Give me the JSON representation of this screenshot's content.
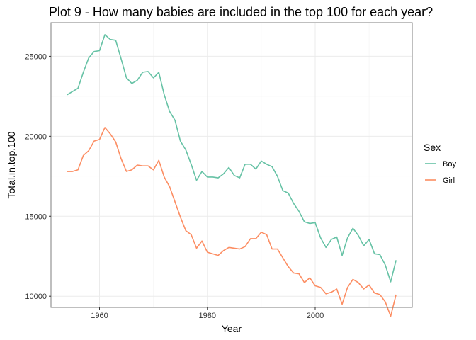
{
  "chart_data": {
    "type": "line",
    "title": "Plot 9 - How many babies are included in the top 100 for each year?",
    "xlabel": "Year",
    "ylabel": "Total.in.top.100",
    "xlim": [
      1951,
      2018
    ],
    "ylim": [
      9300,
      27100
    ],
    "x_ticks": [
      1960,
      1980,
      2000
    ],
    "y_ticks": [
      10000,
      15000,
      20000,
      25000
    ],
    "grid": true,
    "legend": {
      "title": "Sex",
      "position": "right"
    },
    "x": [
      1954,
      1955,
      1956,
      1957,
      1958,
      1959,
      1960,
      1961,
      1962,
      1963,
      1964,
      1965,
      1966,
      1967,
      1968,
      1969,
      1970,
      1971,
      1972,
      1973,
      1974,
      1975,
      1976,
      1977,
      1978,
      1979,
      1980,
      1981,
      1982,
      1983,
      1984,
      1985,
      1986,
      1987,
      1988,
      1989,
      1990,
      1991,
      1992,
      1993,
      1994,
      1995,
      1996,
      1997,
      1998,
      1999,
      2000,
      2001,
      2002,
      2003,
      2004,
      2005,
      2006,
      2007,
      2008,
      2009,
      2010,
      2011,
      2012,
      2013,
      2014,
      2015
    ],
    "series": [
      {
        "name": "Boy",
        "color": "#66c2a5",
        "values": [
          22600,
          22800,
          23000,
          24000,
          24900,
          25300,
          25350,
          26350,
          26050,
          26000,
          24850,
          23650,
          23300,
          23500,
          24000,
          24050,
          23650,
          24000,
          22600,
          21550,
          21000,
          19700,
          19150,
          18250,
          17250,
          17800,
          17450,
          17450,
          17400,
          17650,
          18050,
          17550,
          17400,
          18250,
          18250,
          17950,
          18450,
          18250,
          18100,
          17500,
          16600,
          16450,
          15800,
          15300,
          14650,
          14550,
          14600,
          13650,
          13050,
          13550,
          13700,
          12550,
          13650,
          14250,
          13800,
          13150,
          13550,
          12650,
          12600,
          11950,
          10900,
          12250
        ]
      },
      {
        "name": "Girl",
        "color": "#fc8d62",
        "values": [
          17800,
          17800,
          17900,
          18800,
          19100,
          19700,
          19800,
          20550,
          20150,
          19650,
          18600,
          17800,
          17900,
          18200,
          18150,
          18150,
          17900,
          18500,
          17450,
          16850,
          15900,
          14950,
          14100,
          13850,
          13000,
          13450,
          12750,
          12650,
          12550,
          12850,
          13050,
          13000,
          12950,
          13100,
          13600,
          13600,
          14000,
          13850,
          12950,
          12950,
          12400,
          11850,
          11450,
          11400,
          10850,
          11150,
          10650,
          10550,
          10150,
          10250,
          10450,
          9500,
          10550,
          11050,
          10850,
          10450,
          10700,
          10200,
          10100,
          9650,
          8750,
          10100
        ]
      }
    ]
  }
}
